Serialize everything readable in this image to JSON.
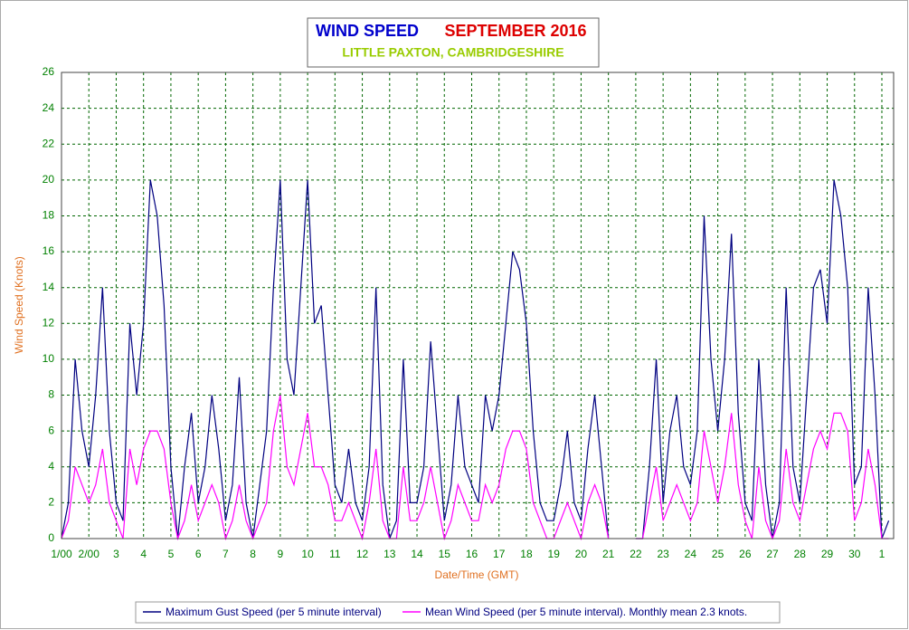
{
  "chart_data": {
    "type": "line",
    "title": "WIND SPEED",
    "period": "SEPTEMBER 2016",
    "subtitle": "LITTLE PAXTON, CAMBRIDGESHIRE",
    "xlabel": "Date/Time (GMT)",
    "ylabel": "Wind Speed (Knots)",
    "xlim": [
      1,
      31.43
    ],
    "ylim": [
      0,
      26
    ],
    "yticks": [
      0,
      2,
      4,
      6,
      8,
      10,
      12,
      14,
      16,
      18,
      20,
      22,
      24,
      26
    ],
    "xticks": [
      {
        "value": 1,
        "label": "1/00"
      },
      {
        "value": 2,
        "label": "2/00"
      },
      3,
      4,
      5,
      6,
      7,
      8,
      9,
      10,
      11,
      12,
      13,
      14,
      15,
      16,
      17,
      18,
      19,
      20,
      21,
      22,
      23,
      24,
      25,
      26,
      27,
      28,
      29,
      30,
      {
        "value": 31,
        "label": "1"
      }
    ],
    "grid": true,
    "x": [
      1,
      1.25,
      1.5,
      1.75,
      2,
      2.25,
      2.5,
      2.75,
      3,
      3.25,
      3.5,
      3.75,
      4,
      4.25,
      4.5,
      4.75,
      5,
      5.25,
      5.5,
      5.75,
      6,
      6.25,
      6.5,
      6.75,
      7,
      7.25,
      7.5,
      7.75,
      8,
      8.25,
      8.5,
      8.75,
      9,
      9.25,
      9.5,
      9.75,
      10,
      10.25,
      10.5,
      10.75,
      11,
      11.25,
      11.5,
      11.75,
      12,
      12.25,
      12.5,
      12.75,
      13,
      13.25,
      13.5,
      13.75,
      14,
      14.25,
      14.5,
      14.75,
      15,
      15.25,
      15.5,
      15.75,
      16,
      16.25,
      16.5,
      16.75,
      17,
      17.25,
      17.5,
      17.75,
      18,
      18.25,
      18.5,
      18.75,
      19,
      19.25,
      19.5,
      19.75,
      20,
      20.25,
      20.5,
      20.75,
      21,
      21.25,
      21.5,
      21.75,
      22,
      22.25,
      22.5,
      22.75,
      23,
      23.25,
      23.5,
      23.75,
      24,
      24.25,
      24.5,
      24.75,
      25,
      25.25,
      25.5,
      25.75,
      26,
      26.25,
      26.5,
      26.75,
      27,
      27.25,
      27.5,
      27.75,
      28,
      28.25,
      28.5,
      28.75,
      29,
      29.25,
      29.5,
      29.75,
      30,
      30.25,
      30.5,
      30.75,
      31,
      31.25
    ],
    "series": [
      {
        "name": "Maximum Gust Speed (per 5 minute interval)",
        "color": "#000080",
        "values": [
          0,
          2,
          10,
          6,
          4,
          8,
          14,
          6,
          2,
          1,
          12,
          8,
          12,
          20,
          18,
          13,
          4,
          0,
          4,
          7,
          2,
          4,
          8,
          5,
          1,
          3,
          9,
          2,
          0,
          3,
          6,
          14,
          20,
          10,
          8,
          14,
          20,
          12,
          13,
          8,
          3,
          2,
          5,
          2,
          1,
          4,
          14,
          3,
          0,
          1,
          10,
          2,
          2,
          4,
          11,
          6,
          1,
          3,
          8,
          4,
          3,
          2,
          8,
          6,
          8,
          12,
          16,
          15,
          12,
          6,
          2,
          1,
          1,
          3,
          6,
          2,
          1,
          5,
          8,
          4,
          0,
          null,
          null,
          null,
          0,
          0,
          4,
          10,
          2,
          6,
          8,
          4,
          3,
          6,
          18,
          10,
          6,
          10,
          17,
          7,
          2,
          1,
          10,
          3,
          0,
          2,
          14,
          4,
          2,
          8,
          14,
          15,
          12,
          20,
          18,
          14,
          3,
          4,
          14,
          8,
          0,
          1
        ]
      },
      {
        "name": "Mean Wind Speed (per 5 minute interval). Monthly mean 2.3 knots.",
        "color": "#ff00ff",
        "values": [
          0,
          1,
          4,
          3,
          2,
          3,
          5,
          2,
          1,
          0,
          5,
          3,
          5,
          6,
          6,
          5,
          2,
          0,
          1,
          3,
          1,
          2,
          3,
          2,
          0,
          1,
          3,
          1,
          0,
          1,
          2,
          6,
          8,
          4,
          3,
          5,
          7,
          4,
          4,
          3,
          1,
          1,
          2,
          1,
          0,
          2,
          5,
          1,
          0,
          0,
          4,
          1,
          1,
          2,
          4,
          2,
          0,
          1,
          3,
          2,
          1,
          1,
          3,
          2,
          3,
          5,
          6,
          6,
          5,
          2,
          1,
          0,
          0,
          1,
          2,
          1,
          0,
          2,
          3,
          2,
          0,
          null,
          null,
          null,
          0,
          0,
          2,
          4,
          1,
          2,
          3,
          2,
          1,
          2,
          6,
          4,
          2,
          4,
          7,
          3,
          1,
          0,
          4,
          1,
          0,
          1,
          5,
          2,
          1,
          3,
          5,
          6,
          5,
          7,
          7,
          6,
          1,
          2,
          5,
          3,
          0,
          0
        ]
      }
    ]
  }
}
